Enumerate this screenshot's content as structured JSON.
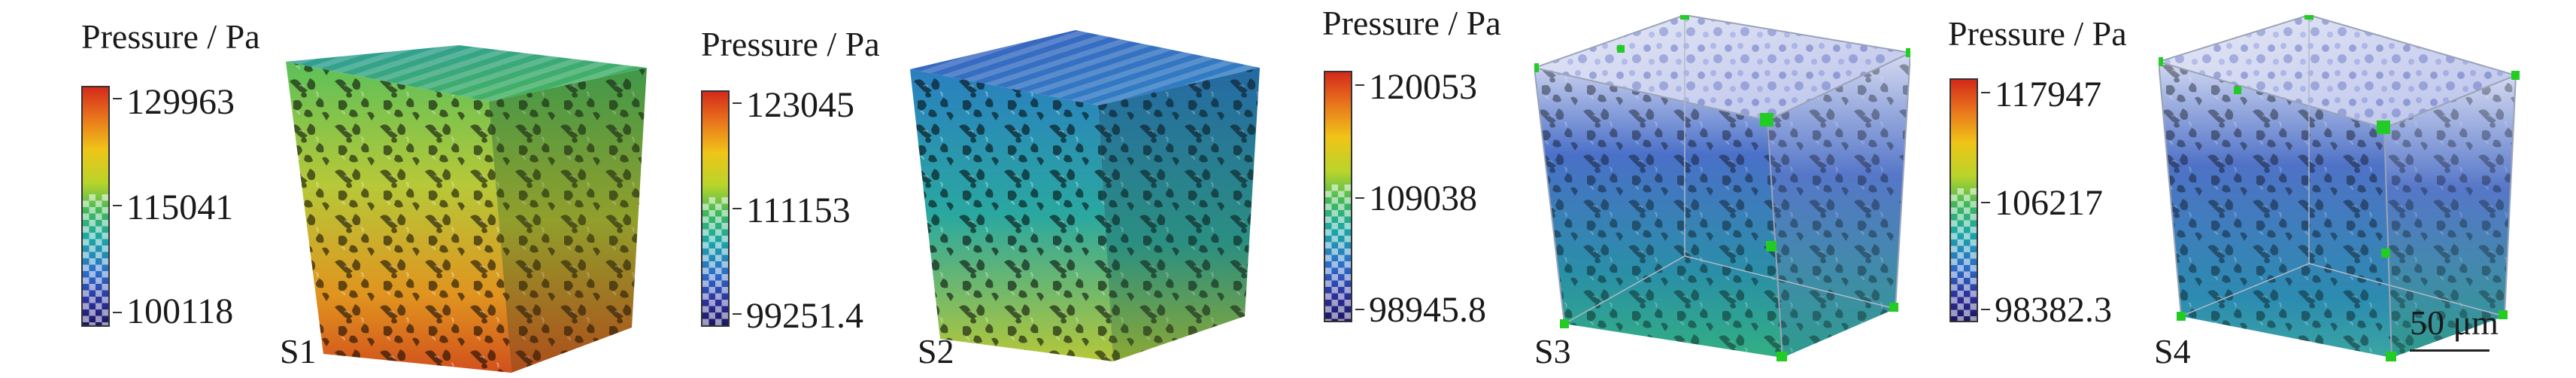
{
  "legend_title": "Pressure / Pa",
  "panels": [
    {
      "sample": "S1",
      "ticks": [
        "129963",
        "115041",
        "100118"
      ]
    },
    {
      "sample": "S2",
      "ticks": [
        "123045",
        "111153",
        "99251.4"
      ]
    },
    {
      "sample": "S3",
      "ticks": [
        "120053",
        "109038",
        "98945.8"
      ]
    },
    {
      "sample": "S4",
      "ticks": [
        "117947",
        "106217",
        "98382.3"
      ]
    }
  ],
  "scale_bar": {
    "label": "50 μm"
  },
  "colors": {
    "colormap_top": "#d42a1a",
    "colormap_mid": "#3fb85a",
    "colormap_bottom": "#1b1660",
    "marker_green": "#22cc22"
  }
}
